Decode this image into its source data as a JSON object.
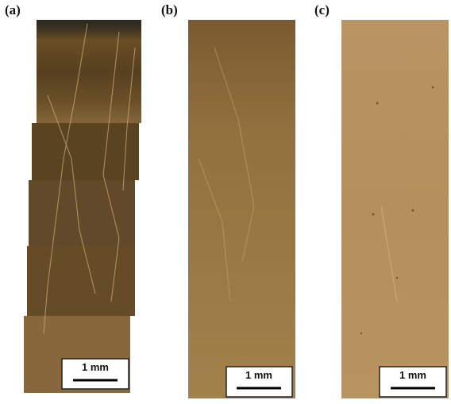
{
  "panels": [
    {
      "label": "(a)",
      "scale_bar": "1 mm"
    },
    {
      "label": "(b)",
      "scale_bar": "1 mm"
    },
    {
      "label": "(c)",
      "scale_bar": "1 mm"
    }
  ]
}
